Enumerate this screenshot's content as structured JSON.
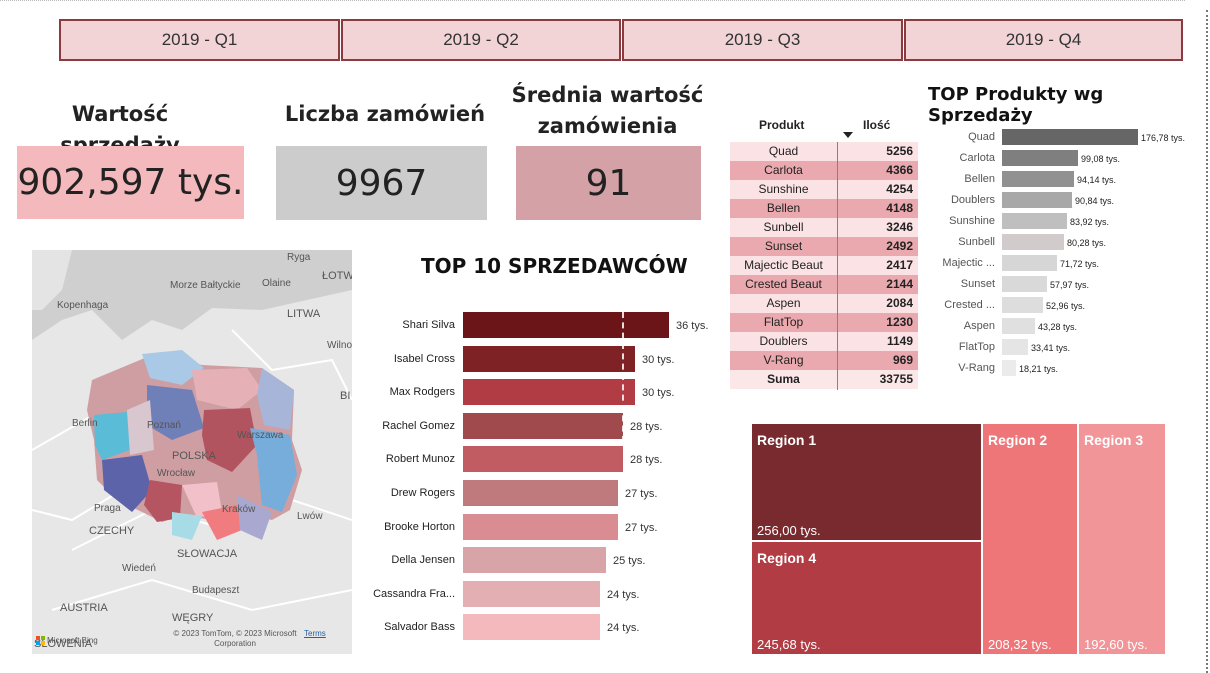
{
  "quarters": [
    "2019 - Q1",
    "2019 - Q2",
    "2019 - Q3",
    "2019 - Q4"
  ],
  "kpis": [
    {
      "label": "Wartość sprzedaży",
      "value": "902,597 tys.",
      "color": "#f4b9bd"
    },
    {
      "label": "Liczba zamówień",
      "value": "9967",
      "color": "#cccccc"
    },
    {
      "label": "Średnia wartość zamówienia",
      "value": "91",
      "color": "#d4a2a6"
    }
  ],
  "map": {
    "labels": [
      "Ryga",
      "Morze Bałtyckie",
      "ŁOTW",
      "Kopenhaga",
      "Olaine",
      "LITWA",
      "Wilno",
      "BI",
      "Berlin",
      "Poznań",
      "Warszawa",
      "POLSKA",
      "Wrocław",
      "Praga",
      "Kraków",
      "Lwów",
      "CZECHY",
      "SŁOWACJA",
      "Wiedeń",
      "Budapeszt",
      "AUSTRIA",
      "WĘGRY",
      "SŁOWENIA"
    ],
    "logo_text": "Microsoft Bing",
    "copyright": "© 2023 TomTom, © 2023 Microsoft Corporation",
    "terms": "Terms"
  },
  "sellers": {
    "title": "TOP 10 SPRZEDAWCÓW",
    "rows": [
      {
        "name": "Shari Silva",
        "label": "36 tys.",
        "value": 36,
        "color": "#6b1519"
      },
      {
        "name": "Isabel Cross",
        "label": "30 tys.",
        "value": 30,
        "color": "#7e2226"
      },
      {
        "name": "Max Rodgers",
        "label": "30 tys.",
        "value": 30,
        "color": "#b13c44"
      },
      {
        "name": "Rachel Gomez",
        "label": "28 tys.",
        "value": 28,
        "color": "#a14a4e"
      },
      {
        "name": "Robert Munoz",
        "label": "28 tys.",
        "value": 28,
        "color": "#c05c62"
      },
      {
        "name": "Drew Rogers",
        "label": "27 tys.",
        "value": 27,
        "color": "#bf7a7d"
      },
      {
        "name": "Brooke Horton",
        "label": "27 tys.",
        "value": 27,
        "color": "#d98d92"
      },
      {
        "name": "Della Jensen",
        "label": "25 tys.",
        "value": 25,
        "color": "#d8a4a7"
      },
      {
        "name": "Cassandra Fra...",
        "label": "24 tys.",
        "value": 24,
        "color": "#e4afb2"
      },
      {
        "name": "Salvador Bass",
        "label": "24 tys.",
        "value": 24,
        "color": "#f4b9bd"
      }
    ],
    "max": 36,
    "average": 27.7
  },
  "product_table": {
    "headers": {
      "product": "Produkt",
      "qty": "Ilość"
    },
    "sort_icon": "sort-desc-icon",
    "rows": [
      {
        "name": "Quad",
        "qty": "5256"
      },
      {
        "name": "Carlota",
        "qty": "4366"
      },
      {
        "name": "Sunshine",
        "qty": "4254"
      },
      {
        "name": "Bellen",
        "qty": "4148"
      },
      {
        "name": "Sunbell",
        "qty": "3246"
      },
      {
        "name": "Sunset",
        "qty": "2492"
      },
      {
        "name": "Majectic Beaut",
        "qty": "2417"
      },
      {
        "name": "Crested Beaut",
        "qty": "2144"
      },
      {
        "name": "Aspen",
        "qty": "2084"
      },
      {
        "name": "FlatTop",
        "qty": "1230"
      },
      {
        "name": "Doublers",
        "qty": "1149"
      },
      {
        "name": "V-Rang",
        "qty": "969"
      }
    ],
    "total": {
      "name": "Suma",
      "qty": "33755"
    }
  },
  "top_products": {
    "title": "TOP Produkty wg Sprzedaży",
    "rows": [
      {
        "name": "Quad",
        "label": "176,78 tys.",
        "value": 176.78,
        "color": "#666666"
      },
      {
        "name": "Carlota",
        "label": "99,08 tys.",
        "value": 99.08,
        "color": "#7f7f7f"
      },
      {
        "name": "Bellen",
        "label": "94,14 tys.",
        "value": 94.14,
        "color": "#919191"
      },
      {
        "name": "Doublers",
        "label": "90,84 tys.",
        "value": 90.84,
        "color": "#a8a8a8"
      },
      {
        "name": "Sunshine",
        "label": "83,92 tys.",
        "value": 83.92,
        "color": "#bfbfbf"
      },
      {
        "name": "Sunbell",
        "label": "80,28 tys.",
        "value": 80.28,
        "color": "#d2cbcc"
      },
      {
        "name": "Majectic ...",
        "label": "71,72 tys.",
        "value": 71.72,
        "color": "#d6d6d6"
      },
      {
        "name": "Sunset",
        "label": "57,97 tys.",
        "value": 57.97,
        "color": "#d9d9d9"
      },
      {
        "name": "Crested ...",
        "label": "52,96 tys.",
        "value": 52.96,
        "color": "#dddddd"
      },
      {
        "name": "Aspen",
        "label": "43,28 tys.",
        "value": 43.28,
        "color": "#e0e0e0"
      },
      {
        "name": "FlatTop",
        "label": "33,41 tys.",
        "value": 33.41,
        "color": "#e5e5e5"
      },
      {
        "name": "V-Rang",
        "label": "18,21 tys.",
        "value": 18.21,
        "color": "#ebebeb"
      }
    ],
    "max": 176.78
  },
  "regions": [
    {
      "name": "Region 1",
      "label": "256,00 tys.",
      "value": 256.0,
      "color": "#792a2e"
    },
    {
      "name": "Region 4",
      "label": "245,68 tys.",
      "value": 245.68,
      "color": "#b23c44"
    },
    {
      "name": "Region 2",
      "label": "208,32 tys.",
      "value": 208.32,
      "color": "#ee7578"
    },
    {
      "name": "Region 3",
      "label": "192,60 tys.",
      "value": 192.6,
      "color": "#f19599"
    }
  ]
}
